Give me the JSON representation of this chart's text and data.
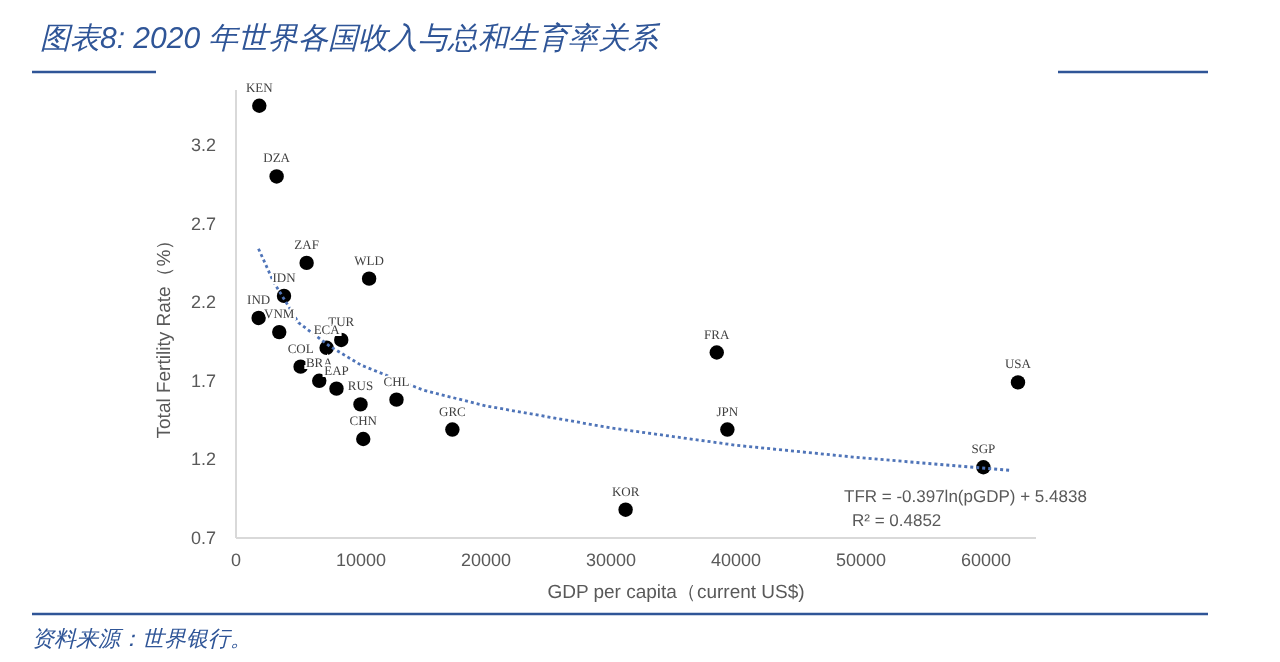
{
  "chart_data": {
    "type": "scatter",
    "title": "图表8:  2020 年世界各国收入与总和生育率关系",
    "xlabel": "GDP per capita（current US$)",
    "ylabel": "Total Fertility Rate（%）",
    "x": [
      1865,
      3250,
      5650,
      10650,
      3840,
      1810,
      3460,
      8420,
      7250,
      5170,
      6660,
      8040,
      12840,
      9960,
      10180,
      17310,
      31170,
      38460,
      39310,
      62560,
      59790
    ],
    "series": [
      {
        "marker": "circle",
        "color": "#000000",
        "values": [
          3.45,
          3.0,
          2.45,
          2.35,
          2.24,
          2.1,
          2.01,
          1.96,
          1.91,
          1.79,
          1.7,
          1.65,
          1.58,
          1.55,
          1.33,
          1.39,
          0.88,
          1.88,
          1.39,
          1.69,
          1.15
        ]
      },
      {
        "type": "line",
        "color": "#4f74b8",
        "line_style": "dotted",
        "x": [
          1800,
          3000,
          5000,
          7500,
          10000,
          15000,
          20000,
          30000,
          40000,
          50000,
          62000
        ],
        "values": [
          2.54,
          2.33,
          2.07,
          1.92,
          1.8,
          1.64,
          1.54,
          1.4,
          1.29,
          1.21,
          1.13
        ]
      }
    ],
    "xlim": [
      0,
      64000
    ],
    "xticks": [
      0,
      10000,
      20000,
      30000,
      40000,
      50000,
      60000
    ],
    "ylim": [
      0.7,
      3.55
    ],
    "yticks": [
      0.7,
      1.2,
      1.7,
      2.2,
      2.7,
      3.2
    ],
    "grid": false,
    "annotations": [
      {
        "text": "KEN",
        "x": 1865,
        "y": 3.45
      },
      {
        "text": "DZA",
        "x": 3250,
        "y": 3.0
      },
      {
        "text": "ZAF",
        "x": 5650,
        "y": 2.45
      },
      {
        "text": "WLD",
        "x": 10650,
        "y": 2.35
      },
      {
        "text": "IDN",
        "x": 3840,
        "y": 2.24
      },
      {
        "text": "IND",
        "x": 1810,
        "y": 2.1
      },
      {
        "text": "VNM",
        "x": 3460,
        "y": 2.01
      },
      {
        "text": "TUR",
        "x": 8420,
        "y": 1.96
      },
      {
        "text": "ECA",
        "x": 7250,
        "y": 1.91
      },
      {
        "text": "COL",
        "x": 5170,
        "y": 1.79
      },
      {
        "text": "BRA",
        "x": 6660,
        "y": 1.7
      },
      {
        "text": "EAP",
        "x": 8040,
        "y": 1.65
      },
      {
        "text": "CHL",
        "x": 12840,
        "y": 1.58
      },
      {
        "text": "RUS",
        "x": 9960,
        "y": 1.55
      },
      {
        "text": "CHN",
        "x": 10180,
        "y": 1.33
      },
      {
        "text": "GRC",
        "x": 17310,
        "y": 1.39
      },
      {
        "text": "KOR",
        "x": 31170,
        "y": 0.88
      },
      {
        "text": "FRA",
        "x": 38460,
        "y": 1.88
      },
      {
        "text": "JPN",
        "x": 39310,
        "y": 1.39
      },
      {
        "text": "USA",
        "x": 62560,
        "y": 1.69
      },
      {
        "text": "SGP",
        "x": 59790,
        "y": 1.15
      },
      "TFR = -0.397ln(pGDP) + 5.4838",
      "R² = 0.4852",
      "资料来源：世界银行。"
    ]
  }
}
